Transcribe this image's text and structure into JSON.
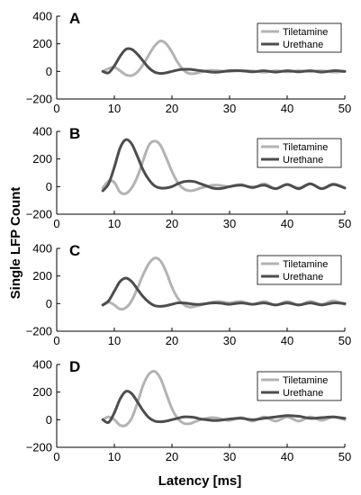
{
  "chart_data": {
    "type": "line",
    "xlabel": "Latency [ms]",
    "ylabel": "Single LFP Count",
    "xlim": [
      0,
      50
    ],
    "ylim": [
      -200,
      400
    ],
    "xticks": [
      0,
      10,
      20,
      30,
      40,
      50
    ],
    "yticks": [
      -200,
      0,
      200,
      400
    ],
    "grid": false,
    "legend_position": "top-right",
    "colors": {
      "Tiletamine": "#b3b3b3",
      "Urethane": "#4d4d4d"
    },
    "panels": [
      {
        "label": "A",
        "series": [
          {
            "name": "Tiletamine",
            "x": [
              8,
              9,
              10,
              11,
              12,
              13,
              14,
              15,
              16,
              17,
              18,
              19,
              20,
              21,
              22,
              23,
              24,
              25,
              26,
              27,
              28,
              29,
              30,
              32,
              34,
              36,
              38,
              40,
              42,
              44,
              46,
              48,
              50
            ],
            "y": [
              0,
              20,
              30,
              5,
              -25,
              -30,
              -5,
              50,
              120,
              185,
              220,
              200,
              140,
              65,
              10,
              -15,
              -15,
              -5,
              5,
              8,
              5,
              0,
              0,
              5,
              3,
              -5,
              5,
              -3,
              5,
              0,
              5,
              -5,
              0
            ]
          },
          {
            "name": "Urethane",
            "x": [
              8,
              9,
              10,
              11,
              12,
              13,
              14,
              15,
              16,
              17,
              18,
              19,
              20,
              21,
              22,
              23,
              24,
              25,
              26,
              27,
              28,
              29,
              30,
              32,
              34,
              36,
              38,
              40,
              42,
              44,
              46,
              48,
              50
            ],
            "y": [
              0,
              -10,
              40,
              110,
              160,
              160,
              125,
              75,
              25,
              -5,
              -15,
              -10,
              0,
              10,
              15,
              15,
              10,
              5,
              0,
              -5,
              -5,
              0,
              5,
              5,
              -3,
              5,
              -5,
              5,
              -3,
              5,
              -5,
              5,
              0
            ]
          }
        ]
      },
      {
        "label": "B",
        "series": [
          {
            "name": "Tiletamine",
            "x": [
              8,
              9,
              10,
              11,
              12,
              13,
              14,
              15,
              16,
              17,
              18,
              19,
              20,
              21,
              22,
              23,
              24,
              25,
              26,
              27,
              28,
              29,
              30,
              32,
              34,
              36,
              38,
              40,
              42,
              44,
              46,
              48,
              50
            ],
            "y": [
              -10,
              40,
              30,
              -40,
              -50,
              -10,
              70,
              190,
              300,
              330,
              300,
              210,
              110,
              30,
              -15,
              -30,
              -25,
              -10,
              0,
              10,
              10,
              5,
              0,
              15,
              -10,
              20,
              -15,
              15,
              -10,
              20,
              -15,
              20,
              -10
            ]
          },
          {
            "name": "Urethane",
            "x": [
              8,
              9,
              10,
              11,
              12,
              13,
              14,
              15,
              16,
              17,
              18,
              19,
              20,
              21,
              22,
              23,
              24,
              25,
              26,
              27,
              28,
              29,
              30,
              32,
              34,
              36,
              38,
              40,
              42,
              44,
              46,
              48,
              50
            ],
            "y": [
              -30,
              20,
              140,
              280,
              340,
              310,
              220,
              120,
              50,
              5,
              -10,
              -10,
              0,
              20,
              35,
              40,
              35,
              20,
              5,
              -10,
              -15,
              -10,
              0,
              10,
              -5,
              10,
              -15,
              15,
              -15,
              20,
              -15,
              15,
              -10
            ]
          }
        ]
      },
      {
        "label": "C",
        "series": [
          {
            "name": "Tiletamine",
            "x": [
              8,
              9,
              10,
              11,
              12,
              13,
              14,
              15,
              16,
              17,
              18,
              19,
              20,
              21,
              22,
              23,
              24,
              25,
              26,
              27,
              28,
              29,
              30,
              32,
              34,
              36,
              38,
              40,
              42,
              44,
              46,
              48,
              50
            ],
            "y": [
              -10,
              10,
              -10,
              -40,
              -30,
              20,
              110,
              210,
              290,
              330,
              310,
              230,
              120,
              40,
              -5,
              -25,
              -20,
              -10,
              0,
              10,
              15,
              10,
              5,
              15,
              -5,
              15,
              -10,
              15,
              -10,
              15,
              -5,
              20,
              -5
            ]
          },
          {
            "name": "Urethane",
            "x": [
              8,
              9,
              10,
              11,
              12,
              13,
              14,
              15,
              16,
              17,
              18,
              19,
              20,
              21,
              22,
              23,
              24,
              25,
              26,
              27,
              28,
              29,
              30,
              32,
              34,
              36,
              38,
              40,
              42,
              44,
              46,
              48,
              50
            ],
            "y": [
              -10,
              20,
              90,
              160,
              185,
              160,
              105,
              50,
              10,
              -15,
              -20,
              -15,
              -5,
              5,
              5,
              0,
              -5,
              -5,
              0,
              5,
              5,
              0,
              -5,
              5,
              -5,
              5,
              -10,
              5,
              -10,
              5,
              -10,
              5,
              0
            ]
          }
        ]
      },
      {
        "label": "D",
        "series": [
          {
            "name": "Tiletamine",
            "x": [
              8,
              9,
              10,
              11,
              12,
              13,
              14,
              15,
              16,
              17,
              18,
              19,
              20,
              21,
              22,
              23,
              24,
              25,
              26,
              27,
              28,
              29,
              30,
              32,
              34,
              36,
              38,
              40,
              42,
              44,
              46,
              48,
              50
            ],
            "y": [
              0,
              20,
              0,
              -40,
              -40,
              10,
              120,
              250,
              330,
              350,
              300,
              190,
              80,
              10,
              -25,
              -30,
              -15,
              0,
              10,
              15,
              10,
              0,
              -5,
              15,
              -10,
              20,
              -10,
              20,
              -10,
              20,
              -5,
              20,
              0
            ]
          },
          {
            "name": "Urethane",
            "x": [
              8,
              9,
              10,
              11,
              12,
              13,
              14,
              15,
              16,
              17,
              18,
              19,
              20,
              21,
              22,
              23,
              24,
              25,
              26,
              27,
              28,
              29,
              30,
              32,
              34,
              36,
              38,
              40,
              42,
              44,
              46,
              48,
              50
            ],
            "y": [
              0,
              -20,
              50,
              150,
              205,
              190,
              130,
              65,
              15,
              -10,
              -15,
              -10,
              0,
              10,
              20,
              20,
              15,
              5,
              0,
              -5,
              -5,
              0,
              5,
              10,
              0,
              10,
              20,
              30,
              25,
              10,
              15,
              20,
              10
            ]
          }
        ]
      }
    ]
  }
}
